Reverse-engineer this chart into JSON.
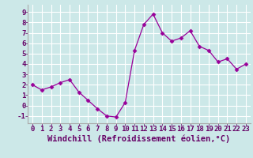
{
  "x": [
    0,
    1,
    2,
    3,
    4,
    5,
    6,
    7,
    8,
    9,
    10,
    11,
    12,
    13,
    14,
    15,
    16,
    17,
    18,
    19,
    20,
    21,
    22,
    23
  ],
  "y": [
    2.0,
    1.5,
    1.8,
    2.2,
    2.5,
    1.3,
    0.5,
    -0.3,
    -1.0,
    -1.1,
    0.3,
    5.3,
    7.8,
    8.8,
    7.0,
    6.2,
    6.5,
    7.2,
    5.7,
    5.3,
    4.2,
    4.5,
    3.5,
    4.0
  ],
  "line_color": "#990099",
  "marker": "D",
  "marker_size": 2.5,
  "bg_color": "#cce8e8",
  "grid_color": "#ffffff",
  "xlabel": "Windchill (Refroidissement éolien,°C)",
  "xlim": [
    -0.5,
    23.5
  ],
  "ylim": [
    -1.7,
    9.7
  ],
  "xticks": [
    0,
    1,
    2,
    3,
    4,
    5,
    6,
    7,
    8,
    9,
    10,
    11,
    12,
    13,
    14,
    15,
    16,
    17,
    18,
    19,
    20,
    21,
    22,
    23
  ],
  "yticks": [
    -1,
    0,
    1,
    2,
    3,
    4,
    5,
    6,
    7,
    8,
    9
  ],
  "tick_fontsize": 6.5,
  "xlabel_fontsize": 7.5
}
